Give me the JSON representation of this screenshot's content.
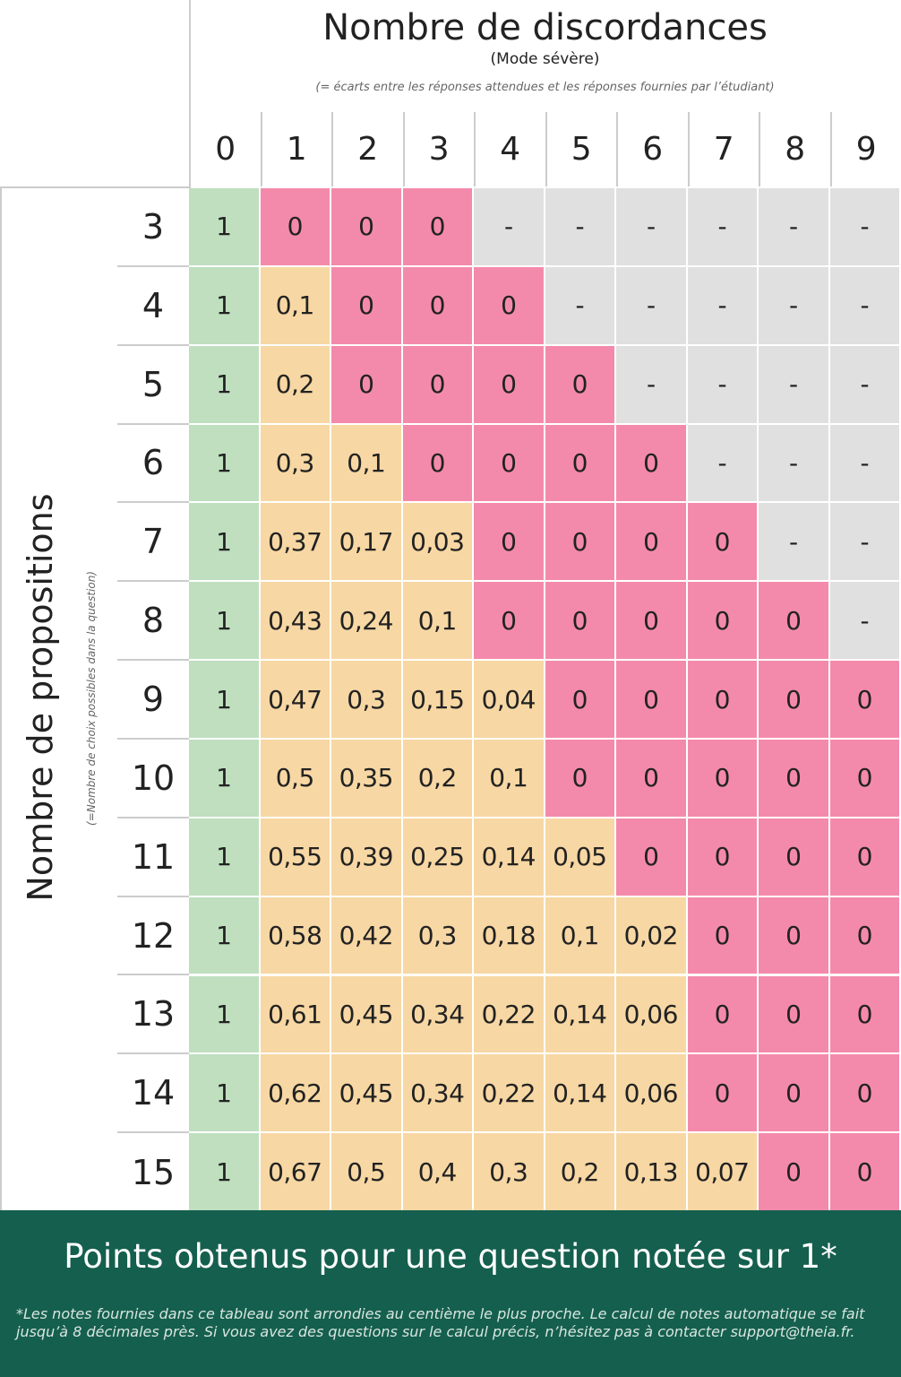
{
  "header": {
    "title": "Nombre de discordances",
    "subtitle": "(Mode sévère)",
    "note": "(= écarts entre les réponses attendues et les réponses fournies par l’étudiant)"
  },
  "columns": [
    "0",
    "1",
    "2",
    "3",
    "4",
    "5",
    "6",
    "7",
    "8",
    "9"
  ],
  "row_header": {
    "title": "Nombre de propositions",
    "subtitle": "(=Nombre de choix possibles dans la question)"
  },
  "rows": [
    {
      "label": "3",
      "cells": [
        "1",
        "0",
        "0",
        "0",
        "-",
        "-",
        "-",
        "-",
        "-",
        "-"
      ]
    },
    {
      "label": "4",
      "cells": [
        "1",
        "0,1",
        "0",
        "0",
        "0",
        "-",
        "-",
        "-",
        "-",
        "-"
      ]
    },
    {
      "label": "5",
      "cells": [
        "1",
        "0,2",
        "0",
        "0",
        "0",
        "0",
        "-",
        "-",
        "-",
        "-"
      ]
    },
    {
      "label": "6",
      "cells": [
        "1",
        "0,3",
        "0,1",
        "0",
        "0",
        "0",
        "0",
        "-",
        "-",
        "-"
      ]
    },
    {
      "label": "7",
      "cells": [
        "1",
        "0,37",
        "0,17",
        "0,03",
        "0",
        "0",
        "0",
        "0",
        "-",
        "-"
      ]
    },
    {
      "label": "8",
      "cells": [
        "1",
        "0,43",
        "0,24",
        "0,1",
        "0",
        "0",
        "0",
        "0",
        "0",
        "-"
      ]
    },
    {
      "label": "9",
      "cells": [
        "1",
        "0,47",
        "0,3",
        "0,15",
        "0,04",
        "0",
        "0",
        "0",
        "0",
        "0"
      ]
    },
    {
      "label": "10",
      "cells": [
        "1",
        "0,5",
        "0,35",
        "0,2",
        "0,1",
        "0",
        "0",
        "0",
        "0",
        "0"
      ]
    },
    {
      "label": "11",
      "cells": [
        "1",
        "0,55",
        "0,39",
        "0,25",
        "0,14",
        "0,05",
        "0",
        "0",
        "0",
        "0"
      ]
    },
    {
      "label": "12",
      "cells": [
        "1",
        "0,58",
        "0,42",
        "0,3",
        "0,18",
        "0,1",
        "0,02",
        "0",
        "0",
        "0"
      ]
    },
    {
      "label": "13",
      "cells": [
        "1",
        "0,61",
        "0,45",
        "0,34",
        "0,22",
        "0,14",
        "0,06",
        "0",
        "0",
        "0"
      ]
    },
    {
      "label": "14",
      "cells": [
        "1",
        "0,62",
        "0,45",
        "0,34",
        "0,22",
        "0,14",
        "0,06",
        "0",
        "0",
        "0"
      ]
    },
    {
      "label": "15",
      "cells": [
        "1",
        "0,67",
        "0,5",
        "0,4",
        "0,3",
        "0,2",
        "0,13",
        "0,07",
        "0",
        "0"
      ]
    }
  ],
  "footer": {
    "title": "Points obtenus pour une question notée sur 1*",
    "note": "*Les notes fournies dans ce tableau sont arrondies au centième le plus proche. Le calcul de notes automatique se fait jusqu’à 8 décimales près. Si vous avez des questions sur le calcul précis, n’hésitez pas à contacter support@theia.fr."
  }
}
